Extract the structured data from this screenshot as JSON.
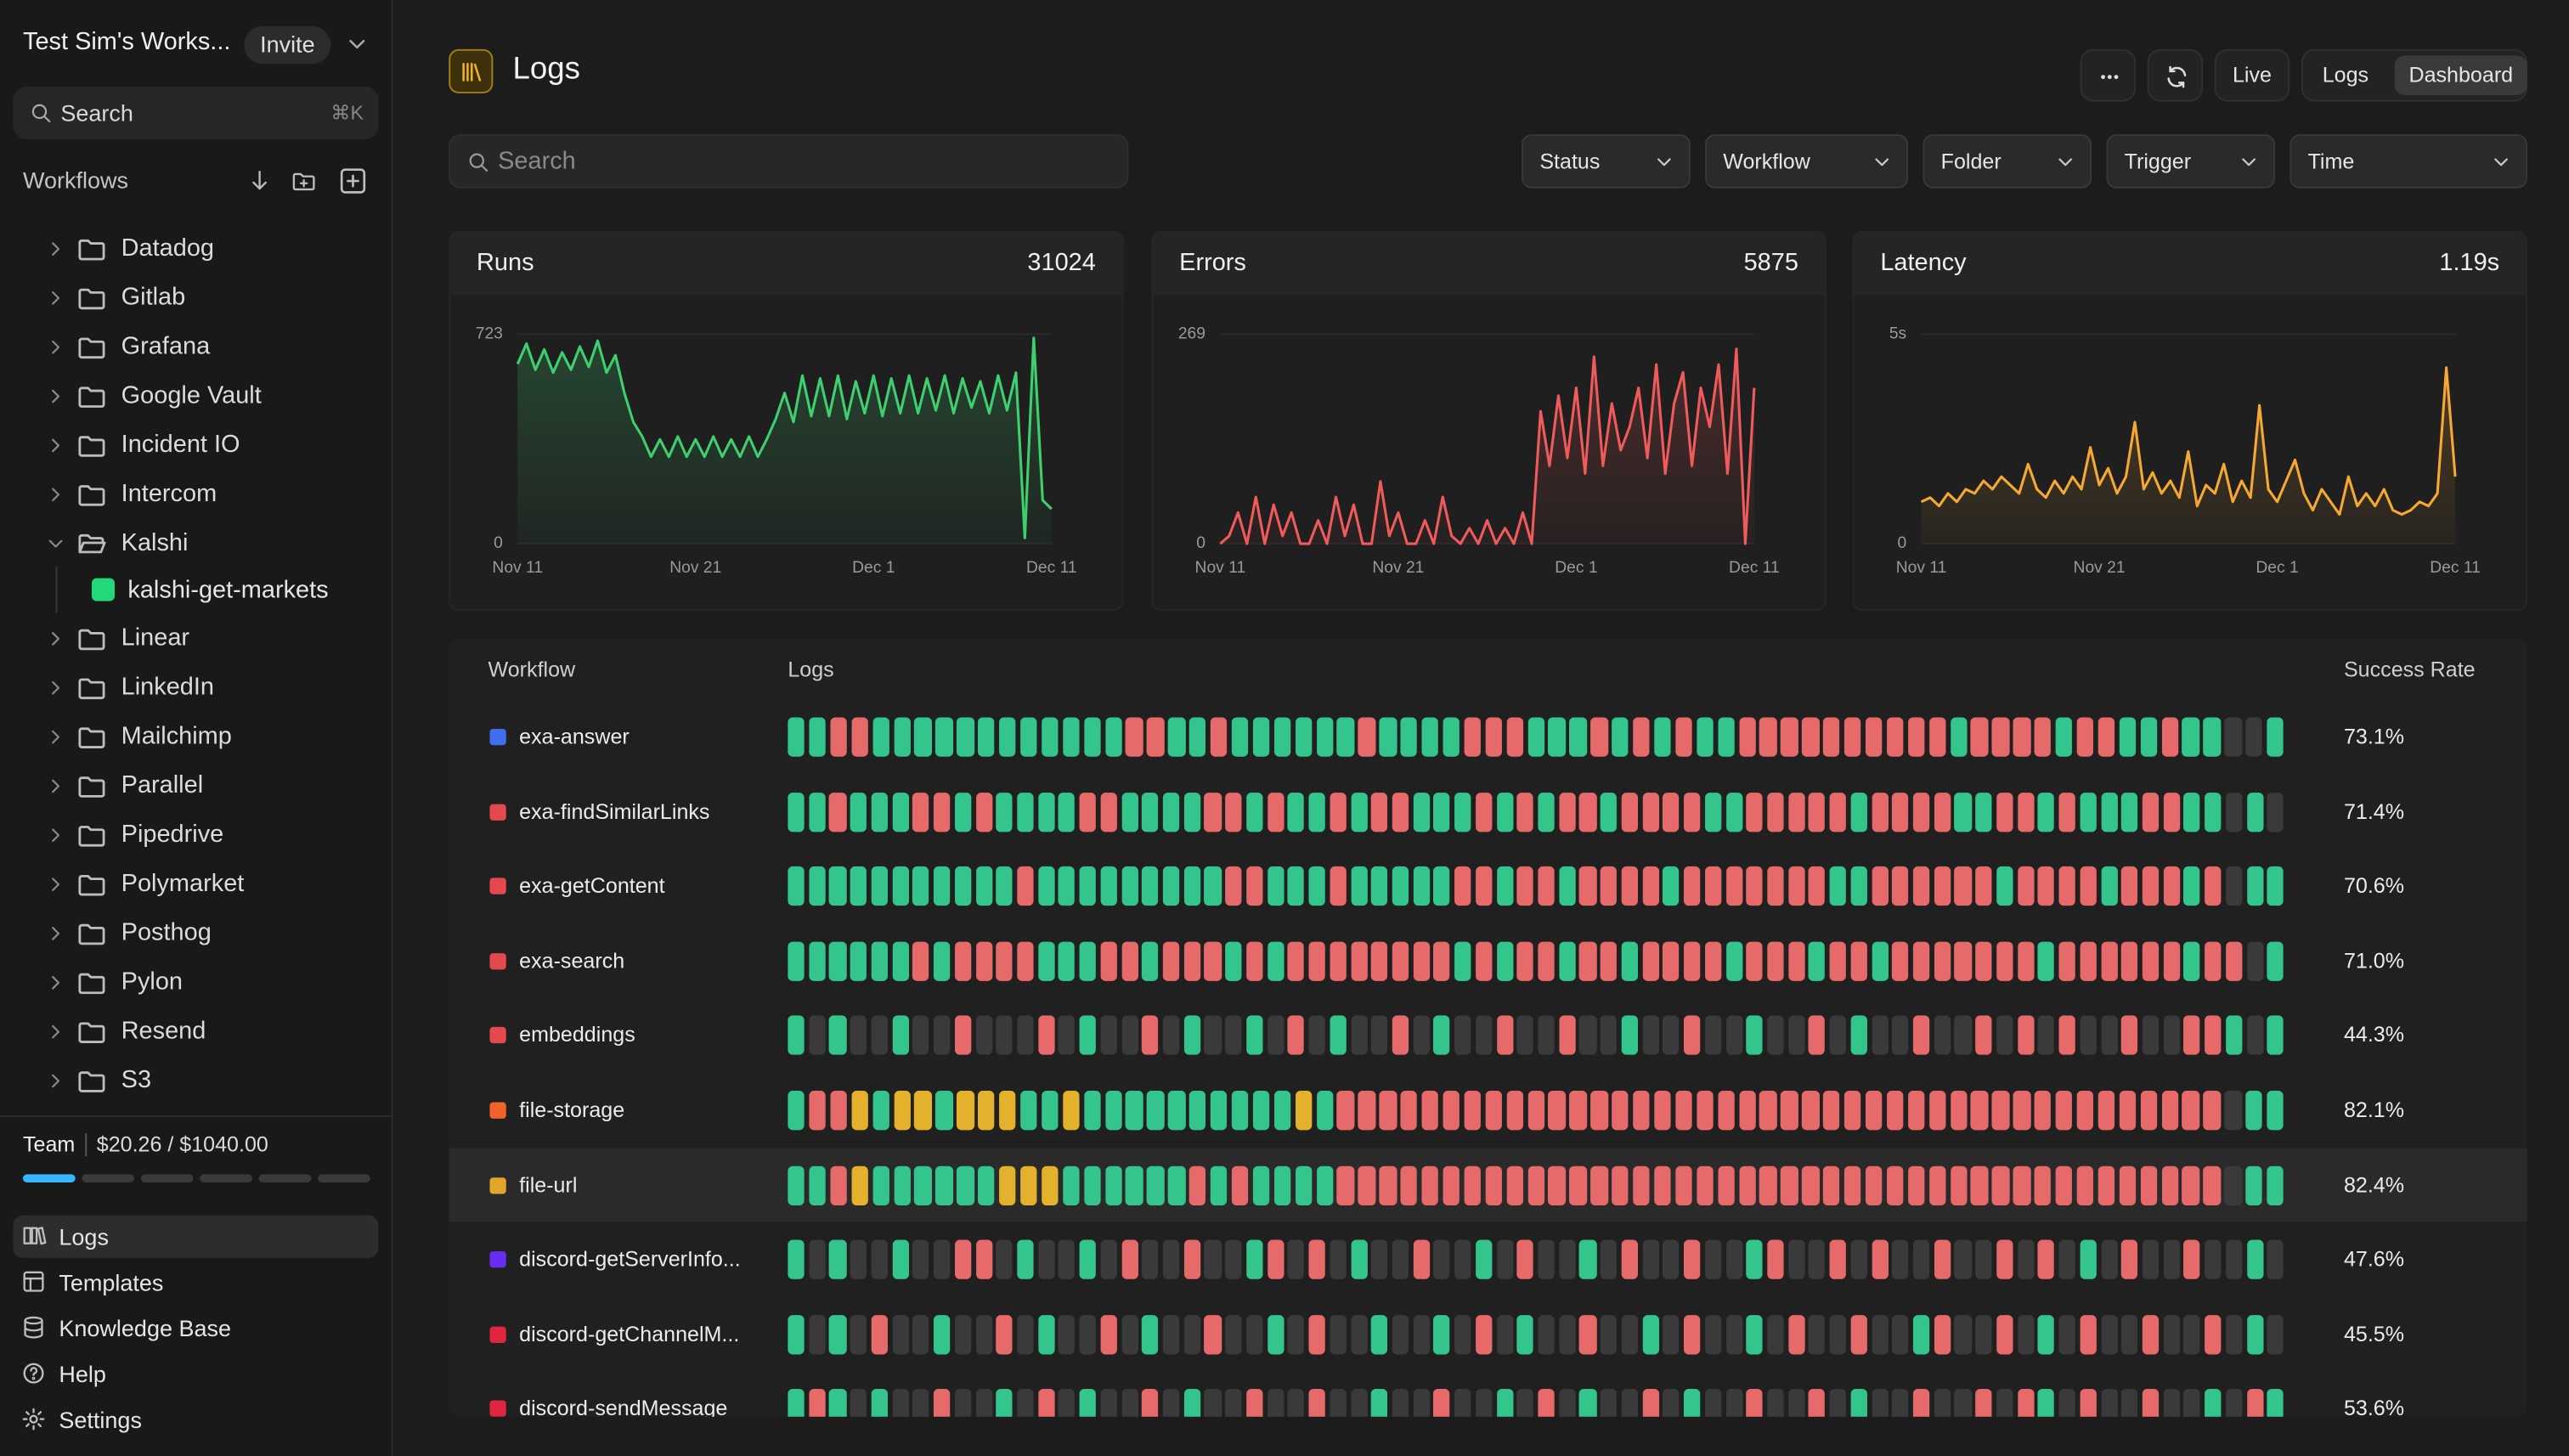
{
  "sidebar": {
    "workspace": "Test Sim's Works...",
    "invite": "Invite",
    "search": "Search",
    "shortcut": "⌘K",
    "workflows_label": "Workflows",
    "folders": [
      {
        "label": "Datadog"
      },
      {
        "label": "Gitlab"
      },
      {
        "label": "Grafana"
      },
      {
        "label": "Google Vault"
      },
      {
        "label": "Incident IO"
      },
      {
        "label": "Intercom"
      },
      {
        "label": "Kalshi",
        "open": true,
        "workflows": [
          {
            "label": "kalshi-get-markets",
            "color": "#22d878"
          }
        ]
      },
      {
        "label": "Linear"
      },
      {
        "label": "LinkedIn"
      },
      {
        "label": "Mailchimp"
      },
      {
        "label": "Parallel"
      },
      {
        "label": "Pipedrive"
      },
      {
        "label": "Polymarket"
      },
      {
        "label": "Posthog"
      },
      {
        "label": "Pylon"
      },
      {
        "label": "Resend"
      },
      {
        "label": "S3"
      }
    ],
    "usage": {
      "plan": "Team",
      "amount": "$20.26 / $1040.00"
    },
    "nav": [
      {
        "label": "Logs",
        "active": true
      },
      {
        "label": "Templates"
      },
      {
        "label": "Knowledge Base"
      },
      {
        "label": "Help"
      },
      {
        "label": "Settings"
      }
    ]
  },
  "header": {
    "title": "Logs",
    "live": "Live",
    "views": [
      {
        "label": "Logs"
      },
      {
        "label": "Dashboard",
        "active": true
      }
    ]
  },
  "filters": {
    "search": "Search",
    "dropdowns": [
      "Status",
      "Workflow",
      "Folder",
      "Trigger",
      "Time"
    ]
  },
  "chart_data": [
    {
      "type": "line",
      "title": "Runs",
      "summary": 31024,
      "color": "#3ecf6e",
      "xlim": [
        0,
        60
      ],
      "xticks": [
        {
          "value": 0,
          "label": "Nov 11"
        },
        {
          "value": 20,
          "label": "Nov 21"
        },
        {
          "value": 40,
          "label": "Dec 1"
        },
        {
          "value": 60,
          "label": "Dec 11"
        }
      ],
      "ylim": [
        0,
        723
      ],
      "yticks": [
        0,
        723
      ],
      "values": [
        620,
        690,
        600,
        670,
        590,
        660,
        600,
        680,
        610,
        700,
        590,
        650,
        520,
        420,
        370,
        300,
        360,
        300,
        370,
        300,
        360,
        300,
        370,
        300,
        360,
        300,
        370,
        300,
        360,
        430,
        520,
        420,
        580,
        440,
        570,
        440,
        580,
        430,
        560,
        450,
        580,
        440,
        570,
        450,
        580,
        450,
        570,
        460,
        580,
        450,
        570,
        470,
        560,
        450,
        580,
        460,
        590,
        20,
        710,
        150,
        120
      ]
    },
    {
      "type": "line",
      "title": "Errors",
      "summary": 5875,
      "color": "#ef5a5a",
      "xlim": [
        0,
        60
      ],
      "xticks": [
        {
          "value": 0,
          "label": "Nov 11"
        },
        {
          "value": 20,
          "label": "Nov 21"
        },
        {
          "value": 40,
          "label": "Dec 1"
        },
        {
          "value": 60,
          "label": "Dec 11"
        }
      ],
      "ylim": [
        0,
        269
      ],
      "yticks": [
        0,
        269
      ],
      "values": [
        0,
        10,
        40,
        0,
        60,
        0,
        50,
        10,
        40,
        0,
        0,
        30,
        0,
        60,
        10,
        50,
        0,
        0,
        80,
        10,
        40,
        0,
        0,
        30,
        0,
        60,
        10,
        0,
        20,
        0,
        30,
        0,
        20,
        0,
        40,
        0,
        170,
        100,
        190,
        110,
        200,
        90,
        240,
        100,
        180,
        120,
        150,
        200,
        110,
        230,
        90,
        180,
        220,
        100,
        200,
        150,
        230,
        90,
        250,
        0,
        200
      ]
    },
    {
      "type": "line",
      "title": "Latency",
      "summary": {
        "value": 1.19,
        "label": "1.19s"
      },
      "color": "#f5a833",
      "xlim": [
        0,
        60
      ],
      "xticks": [
        {
          "value": 0,
          "label": "Nov 11"
        },
        {
          "value": 20,
          "label": "Nov 21"
        },
        {
          "value": 40,
          "label": "Dec 1"
        },
        {
          "value": 60,
          "label": "Dec 11"
        }
      ],
      "ylim": [
        0,
        5
      ],
      "yticks": [
        0,
        {
          "value": 5,
          "label": "5s"
        }
      ],
      "values": [
        1.0,
        1.1,
        0.9,
        1.2,
        1.0,
        1.3,
        1.2,
        1.5,
        1.3,
        1.6,
        1.4,
        1.2,
        1.9,
        1.3,
        1.1,
        1.5,
        1.2,
        1.6,
        1.3,
        2.3,
        1.4,
        1.8,
        1.2,
        1.6,
        2.9,
        1.3,
        1.7,
        1.2,
        1.5,
        1.1,
        2.2,
        0.9,
        1.4,
        1.2,
        1.9,
        1.0,
        1.5,
        1.1,
        3.3,
        1.3,
        1.0,
        1.5,
        2.0,
        1.2,
        0.8,
        1.3,
        1.0,
        0.7,
        1.6,
        0.9,
        1.2,
        0.9,
        1.3,
        0.8,
        0.7,
        0.8,
        1.0,
        0.9,
        1.2,
        4.2,
        1.6
      ]
    }
  ],
  "workflow_table": {
    "headers": [
      "Workflow",
      "Logs",
      "Success Rate"
    ],
    "status_colors": {
      "s": "#34c58c",
      "r": "#e76a6a",
      "p": "#e3b12c",
      "n": "#3a3a3a"
    },
    "rows": [
      {
        "name": "exa-answer",
        "color": "#3f6ff0",
        "logs": "ssrrssssssssssssrrssrssssssrssssrrrsssrsrsrssrrrrrrrrrrsrrrrsrrssrssnns",
        "success_rate": "73.1%"
      },
      {
        "name": "exa-findSimilarLinks",
        "color": "#e5484d",
        "logs": "ssrsssrrsrssssrrssssrrsrssrsrrsssrsrsrrsrrrrssrrrrrsrrrrssrrsrsssrrssnsn",
        "success_rate": "71.4%"
      },
      {
        "name": "exa-getContent",
        "color": "#e5484d",
        "logs": "sssssssssssrsssssssssrrsssrsssssrrsrrsrrrrsrrrrrrrssrrrrrrsrrrrsrrrsrnss",
        "success_rate": "70.6%"
      },
      {
        "name": "exa-search",
        "color": "#e5484d",
        "logs": "ssssssrsrrrrsssrrsrrrsrsrrrrrrrrsrsrrsrrsrrrrsrrrsrrsrrrrrrrsrrrrrrsrrns",
        "success_rate": "71.0%"
      },
      {
        "name": "embeddings",
        "color": "#e5484d",
        "logs": "snsnnsnnrnnnrnsnnrnsnnsnrnsnnrnsnnrnnrnnsnnrnnsnnrnsnnrnnrnrnrnnrnnrrsns",
        "success_rate": "44.3%"
      },
      {
        "name": "file-storage",
        "color": "#f0622a",
        "logs": "srrpsppspppsspsssssssssspsrrrrrrrrrrrrrrrrrrrrrrrrrrrrrrrrrrrrrrrrrrnss",
        "success_rate": "82.1%"
      },
      {
        "name": "file-url",
        "color": "#e2a52b",
        "selected": true,
        "logs": "ssrpsssssspppssssssrsrssssrrrrrrrrrrrrrrrrrrrrrrrrrrrrrrrrrrrrrrrrrrnss",
        "success_rate": "82.4%"
      },
      {
        "name": "discord-getServerInfo...",
        "color": "#6a2cf0",
        "logs": "snsnnsnnrrnsnnsnrnnrnnsrnrnsnnrnnsnrnnsnrnnrnnsrnnrnrnnrnnrnrnsnrnnrnnsn",
        "success_rate": "47.6%"
      },
      {
        "name": "discord-getChannelM...",
        "color": "#e0263f",
        "logs": "snsnrnnsnnrnsnnrnsnnrnnsnrnnsnnsnrnsnnrnnsnrnnsnrnnrnnsrnnrnsnrnnrnnrnsn",
        "success_rate": "45.5%"
      },
      {
        "name": "discord-sendMessage",
        "color": "#e0263f",
        "logs": "srsnsnnrnnsnrnsnnrnsnnrnnrnnsnnrnnsnrnsnnrnsnnrnnrnsnnrnnrnrsnrnnrnnsnrs",
        "success_rate": "53.6%"
      }
    ]
  }
}
